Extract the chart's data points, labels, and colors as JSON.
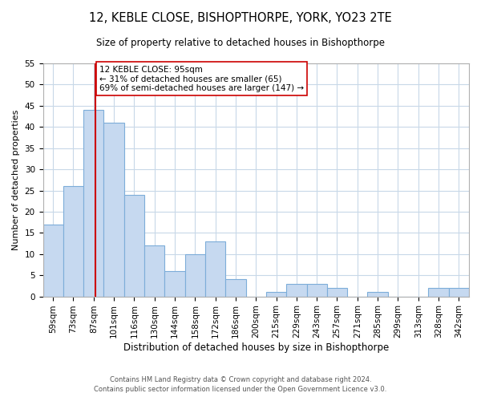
{
  "title": "12, KEBLE CLOSE, BISHOPTHORPE, YORK, YO23 2TE",
  "subtitle": "Size of property relative to detached houses in Bishopthorpe",
  "xlabel": "Distribution of detached houses by size in Bishopthorpe",
  "ylabel": "Number of detached properties",
  "bin_labels": [
    "59sqm",
    "73sqm",
    "87sqm",
    "101sqm",
    "116sqm",
    "130sqm",
    "144sqm",
    "158sqm",
    "172sqm",
    "186sqm",
    "200sqm",
    "215sqm",
    "229sqm",
    "243sqm",
    "257sqm",
    "271sqm",
    "285sqm",
    "299sqm",
    "313sqm",
    "328sqm",
    "342sqm"
  ],
  "bar_heights": [
    17,
    26,
    44,
    41,
    24,
    12,
    6,
    10,
    13,
    4,
    0,
    1,
    3,
    3,
    2,
    0,
    1,
    0,
    0,
    2,
    2
  ],
  "bar_color": "#c6d9f0",
  "bar_edge_color": "#7dadd9",
  "vline_color": "#cc0000",
  "annotation_text": "12 KEBLE CLOSE: 95sqm\n← 31% of detached houses are smaller (65)\n69% of semi-detached houses are larger (147) →",
  "annotation_box_color": "#ffffff",
  "annotation_box_edge": "#cc0000",
  "ylim": [
    0,
    55
  ],
  "yticks": [
    0,
    5,
    10,
    15,
    20,
    25,
    30,
    35,
    40,
    45,
    50,
    55
  ],
  "footer1": "Contains HM Land Registry data © Crown copyright and database right 2024.",
  "footer2": "Contains public sector information licensed under the Open Government Licence v3.0.",
  "bg_color": "#ffffff",
  "grid_color": "#c8d8e8",
  "title_fontsize": 10.5,
  "subtitle_fontsize": 8.5,
  "xlabel_fontsize": 8.5,
  "ylabel_fontsize": 8,
  "tick_fontsize": 7.5,
  "annotation_fontsize": 7.5,
  "footer_fontsize": 6.0
}
